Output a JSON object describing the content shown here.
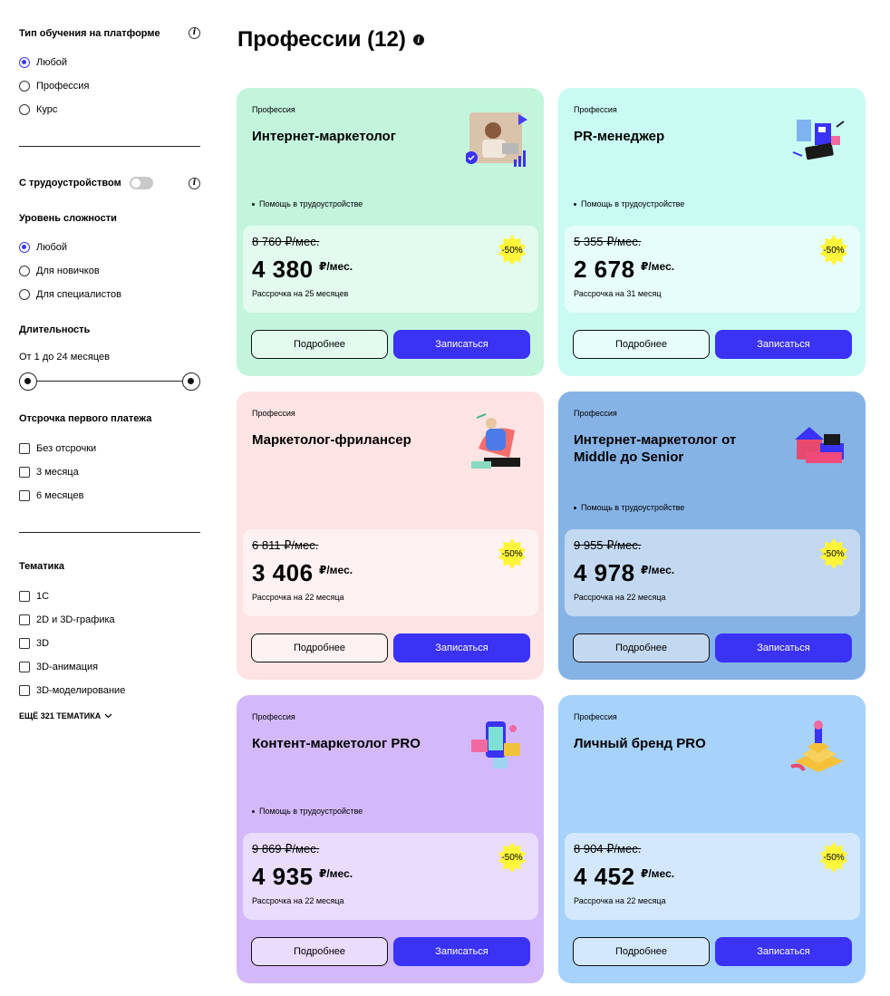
{
  "filters": {
    "platform": {
      "title": "Тип обучения на платформе",
      "options": [
        "Любой",
        "Профессия",
        "Курс"
      ],
      "selected": 0
    },
    "employment": {
      "label": "С трудоустройством",
      "enabled": false
    },
    "level": {
      "title": "Уровень сложности",
      "options": [
        "Любой",
        "Для новичков",
        "Для специалистов"
      ],
      "selected": 0
    },
    "duration": {
      "title": "Длительность",
      "range_text": "От 1 до 24 месяцев",
      "min": 1,
      "max": 24
    },
    "deferral": {
      "title": "Отсрочка первого платежа",
      "options": [
        "Без отсрочки",
        "3 месяца",
        "6 месяцев"
      ]
    },
    "topics": {
      "title": "Тематика",
      "options": [
        "1С",
        "2D и 3D-графика",
        "3D",
        "3D-анимация",
        "3D-моделирование"
      ],
      "more": "ЕЩЁ 321 ТЕМАТИКА"
    }
  },
  "header": {
    "title": "Профессии (12)"
  },
  "cards": [
    {
      "kind": "Профессия",
      "name": "Интернет-маркетолог",
      "help": "Помощь в трудоустройстве",
      "old_price": "8 760 ₽/мес.",
      "price": "4 380",
      "per": "₽/мес.",
      "term": "Рассрочка на 25 месяцев",
      "sale": "-50%",
      "more": "Подробнее",
      "enroll": "Записаться",
      "bg": "#c3f5dd",
      "box": "#e2fbee",
      "icon": "woman-laptop-icon"
    },
    {
      "kind": "Профессия",
      "name": "PR-менеджер",
      "help": "Помощь в трудоустройстве",
      "old_price": "5 355 ₽/мес.",
      "price": "2 678",
      "per": "₽/мес.",
      "term": "Рассрочка на 31 месяц",
      "sale": "-50%",
      "more": "Подробнее",
      "enroll": "Записаться",
      "bg": "#c9fbf2",
      "box": "#e6fdf9",
      "icon": "pr-letters-icon"
    },
    {
      "kind": "Профессия",
      "name": "Маркетолог-фрилансер",
      "help": "",
      "old_price": "6 811 ₽/мес.",
      "price": "3 406",
      "per": "₽/мес.",
      "term": "Рассрочка на 22 месяца",
      "sale": "-50%",
      "more": "Подробнее",
      "enroll": "Записаться",
      "bg": "#fde3e3",
      "box": "#fef1f1",
      "icon": "freelancer-chair-icon"
    },
    {
      "kind": "Профессия",
      "name": "Интернет-маркетолог от Middle до Senior",
      "help": "Помощь в трудоустройстве",
      "old_price": "9 955 ₽/мес.",
      "price": "4 978",
      "per": "₽/мес.",
      "term": "Рассрочка на 22 месяца",
      "sale": "-50%",
      "more": "Подробнее",
      "enroll": "Записаться",
      "bg": "#86b3e5",
      "box": "#c3d8f1",
      "icon": "shop-house-icon"
    },
    {
      "kind": "Профессия",
      "name": "Контент-маркетолог PRO",
      "help": "Помощь в трудоустройстве",
      "old_price": "9 869 ₽/мес.",
      "price": "4 935",
      "per": "₽/мес.",
      "term": "Рассрочка на 22 месяца",
      "sale": "-50%",
      "more": "Подробнее",
      "enroll": "Записаться",
      "bg": "#d3b9fb",
      "box": "#e9dcfd",
      "icon": "content-phone-icon"
    },
    {
      "kind": "Профессия",
      "name": "Личный бренд PRO",
      "help": "",
      "old_price": "8 904 ₽/мес.",
      "price": "4 452",
      "per": "₽/мес.",
      "term": "Рассрочка на 22 месяца",
      "sale": "-50%",
      "more": "Подробнее",
      "enroll": "Записаться",
      "bg": "#a6d2fb",
      "box": "#d3e8fd",
      "icon": "podium-figure-icon"
    }
  ]
}
